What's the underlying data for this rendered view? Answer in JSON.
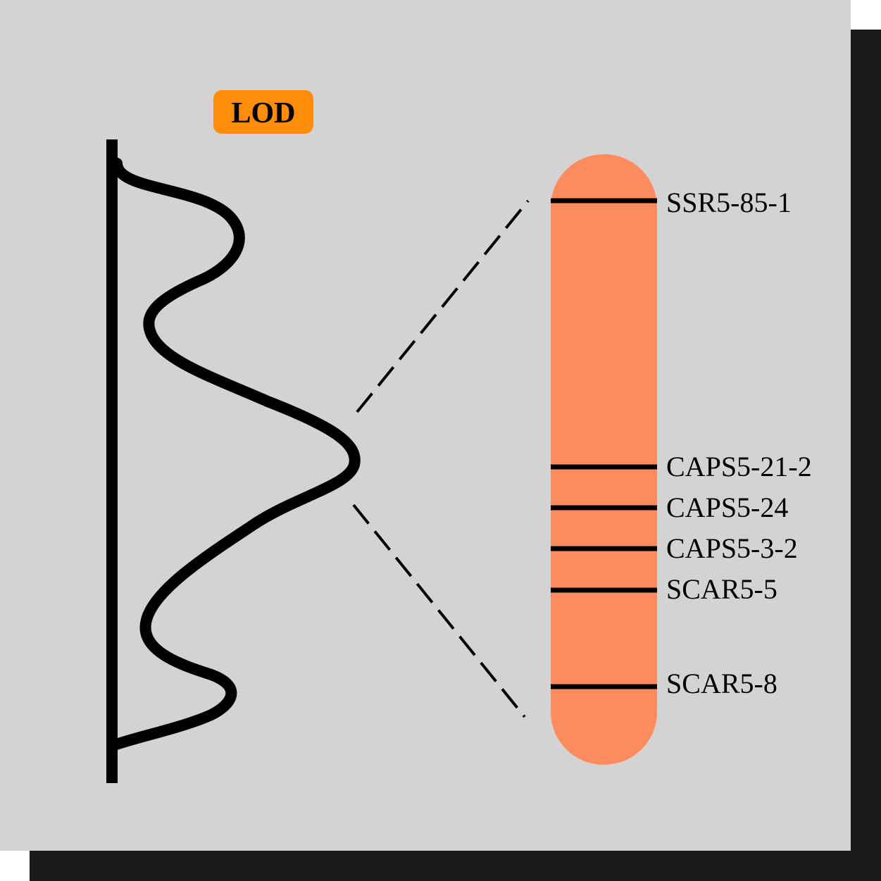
{
  "lod_badge": {
    "label": "LOD"
  },
  "chromosome": {
    "markers": [
      {
        "id": "m1",
        "name": "SSR5-85-1"
      },
      {
        "id": "m2",
        "name": "CAPS5-21-2"
      },
      {
        "id": "m3",
        "name": "CAPS5-24"
      },
      {
        "id": "m4",
        "name": "CAPS5-3-2"
      },
      {
        "id": "m5",
        "name": "SCAR5-5"
      },
      {
        "id": "m6",
        "name": "SCAR5-8"
      }
    ]
  },
  "colors": {
    "panel_background": "#d4d2d3",
    "shadow": "#191919",
    "lod_badge_fill": "#ff8c0a",
    "chromosome_fill": "#ff8c5f",
    "line": "#000000"
  },
  "icons": {
    "lod_curve": "lod-curve-icon",
    "interval_lines": "dashed-connector-icon"
  }
}
